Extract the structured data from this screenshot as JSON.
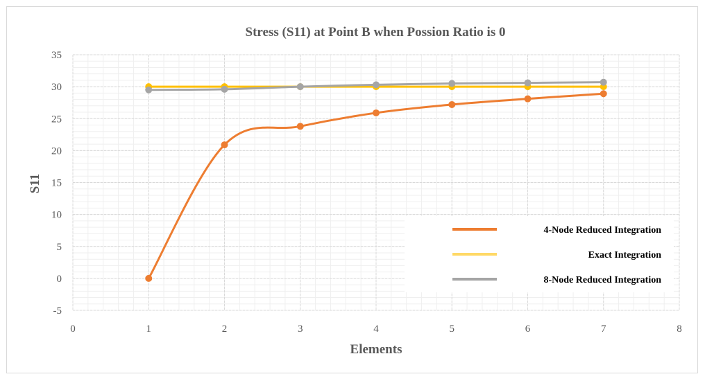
{
  "chart_data": {
    "type": "line",
    "title": "Stress (S11) at Point B when Possion Ratio is 0",
    "xlabel": "Elements",
    "ylabel": "S11",
    "xlim": [
      0,
      8
    ],
    "ylim": [
      -5,
      35
    ],
    "x_ticks": [
      "0",
      "1",
      "2",
      "3",
      "4",
      "5",
      "6",
      "7",
      "8"
    ],
    "y_ticks": [
      "35",
      "30",
      "25",
      "20",
      "15",
      "10",
      "5",
      "0",
      "-5"
    ],
    "grid": true,
    "legend_position": "right",
    "series": [
      {
        "name": "Exact Integration",
        "color": "#FFC000",
        "x": [
          1,
          2,
          3,
          4,
          5,
          6,
          7
        ],
        "values": [
          30,
          30,
          30,
          30,
          30,
          30,
          30
        ]
      },
      {
        "name": "8-Node Reduced Integration",
        "color": "#A5A5A5",
        "x": [
          1,
          2,
          3,
          4,
          5,
          6,
          7
        ],
        "values": [
          29.5,
          29.6,
          30.0,
          30.3,
          30.5,
          30.6,
          30.7
        ]
      },
      {
        "name": "4-Node Reduced Integration",
        "color": "#ED7D31",
        "x": [
          1,
          2,
          3,
          4,
          5,
          6,
          7
        ],
        "values": [
          0,
          20.9,
          23.8,
          25.9,
          27.2,
          28.1,
          28.9
        ]
      }
    ],
    "legend": [
      {
        "label": "4-Node Reduced Integration",
        "color": "#ED7D31"
      },
      {
        "label": "Exact Integration",
        "color": "#FFD966"
      },
      {
        "label": "8-Node Reduced Integration",
        "color": "#A5A5A5"
      }
    ]
  }
}
